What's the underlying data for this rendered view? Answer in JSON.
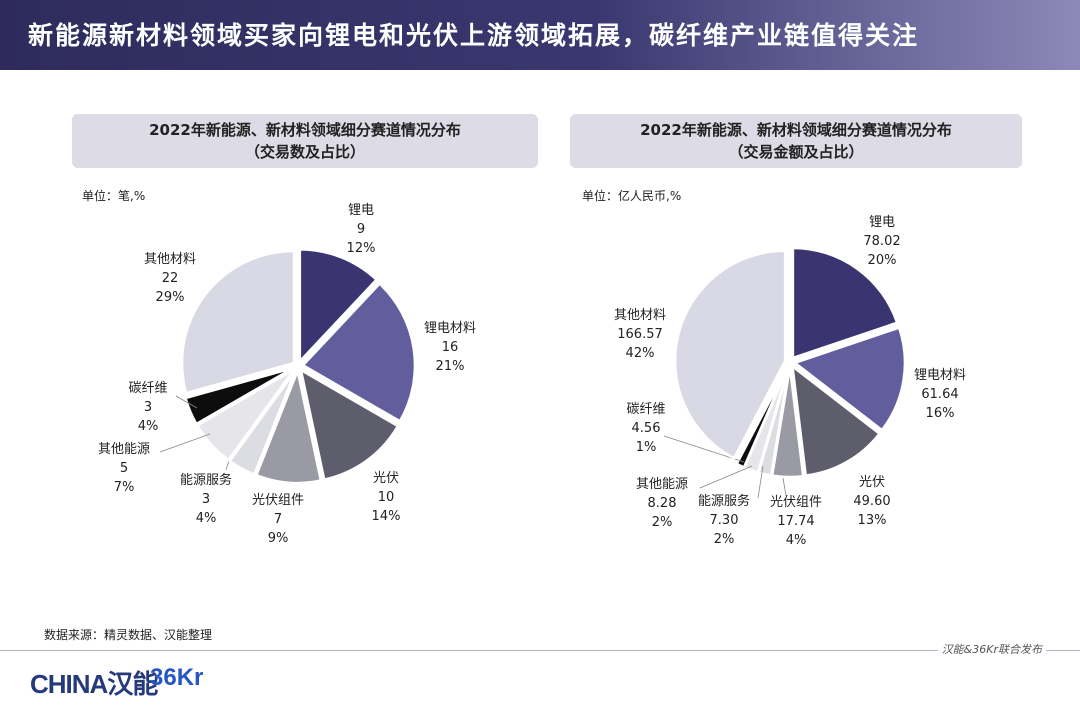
{
  "header": {
    "title": "新能源新材料领域买家向锂电和光伏上游领域拓展，碳纤维产业链值得关注"
  },
  "left_panel": {
    "title_line1": "2022年新能源、新材料领域细分赛道情况分布",
    "title_line2": "（交易数及占比）",
    "unit": "单位：笔,%"
  },
  "right_panel": {
    "title_line1": "2022年新能源、新材料领域细分赛道情况分布",
    "title_line2": "（交易金额及占比）",
    "unit": "单位：亿人民币,%"
  },
  "source": "数据来源：精灵数据、汉能整理",
  "footer": {
    "text": "汉能&36Kr联合发布",
    "logo_china": "HINA汉能",
    "logo_36kr": "36Kr"
  },
  "colors": {
    "li_battery": "#3a3570",
    "li_material": "#625e9e",
    "pv": "#5e5d6c",
    "pv_module": "#999aa3",
    "energy_service": "#dcdce3",
    "other_energy": "#e6e6ea",
    "carbon_fiber": "#0d0d0d",
    "other_material": "#d9d8e5"
  },
  "chart_data": [
    {
      "type": "pie",
      "title": "2022年新能源、新材料领域细分赛道情况分布（交易数及占比）",
      "unit": "单位：笔,%",
      "slices": [
        {
          "name": "锂电",
          "value": "9",
          "pct": "12%"
        },
        {
          "name": "锂电材料",
          "value": "16",
          "pct": "21%"
        },
        {
          "name": "光伏",
          "value": "10",
          "pct": "14%"
        },
        {
          "name": "光伏组件",
          "value": "7",
          "pct": "9%"
        },
        {
          "name": "能源服务",
          "value": "3",
          "pct": "4%"
        },
        {
          "name": "其他能源",
          "value": "5",
          "pct": "7%"
        },
        {
          "name": "碳纤维",
          "value": "3",
          "pct": "4%"
        },
        {
          "name": "其他材料",
          "value": "22",
          "pct": "29%"
        }
      ]
    },
    {
      "type": "pie",
      "title": "2022年新能源、新材料领域细分赛道情况分布（交易金额及占比）",
      "unit": "单位：亿人民币,%",
      "slices": [
        {
          "name": "锂电",
          "value": "78.02",
          "pct": "20%"
        },
        {
          "name": "锂电材料",
          "value": "61.64",
          "pct": "16%"
        },
        {
          "name": "光伏",
          "value": "49.60",
          "pct": "13%"
        },
        {
          "name": "光伏组件",
          "value": "17.74",
          "pct": "4%"
        },
        {
          "name": "能源服务",
          "value": "7.30",
          "pct": "2%"
        },
        {
          "name": "其他能源",
          "value": "8.28",
          "pct": "2%"
        },
        {
          "name": "碳纤维",
          "value": "4.56",
          "pct": "1%"
        },
        {
          "name": "其他材料",
          "value": "166.57",
          "pct": "42%"
        }
      ]
    }
  ]
}
